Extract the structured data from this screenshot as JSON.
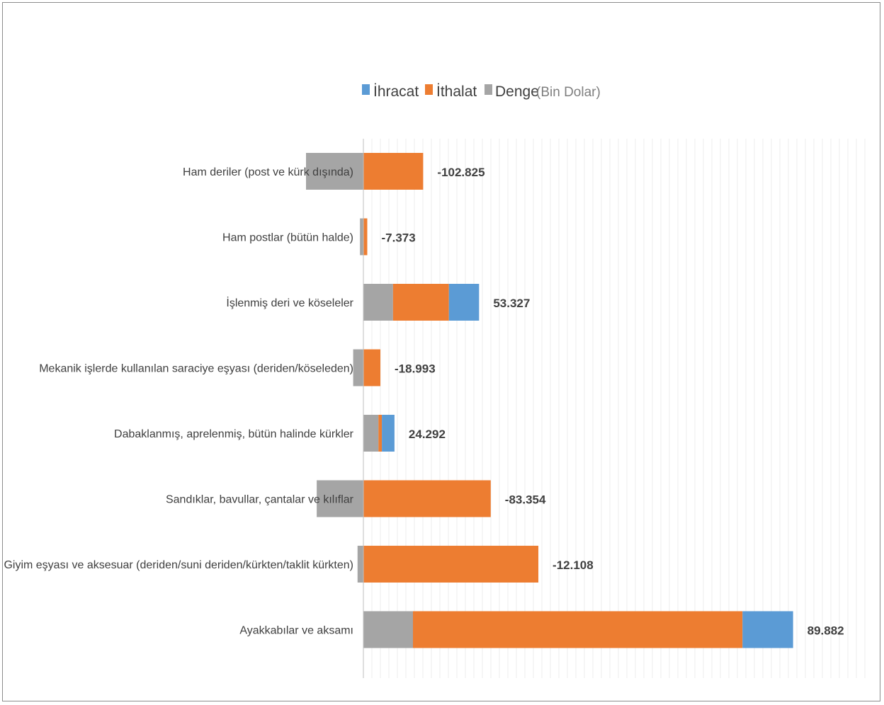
{
  "chart_data": {
    "type": "bar",
    "orientation": "horizontal",
    "stacked": true,
    "title": "",
    "unit_note": "(Bin Dolar)",
    "legend_position": "top",
    "grid": true,
    "colors": {
      "ihracat": "#5b9bd5",
      "ithalat": "#ed7d31",
      "denge": "#a5a5a5"
    },
    "series": [
      {
        "key": "ihracat",
        "name": "İhracat"
      },
      {
        "key": "ithalat",
        "name": "İthalat"
      },
      {
        "key": "denge",
        "name": "Denge"
      }
    ],
    "categories": [
      "Ham deriler (post ve kürk dışında)",
      "Ham postlar (bütün halde)",
      "İşlenmiş deri ve köseleler",
      "Mekanik işlerde kullanılan saraciye eşyası (deriden/köseleden)",
      "Dabaklanmış, aprelenmiş, bütün halinde kürkler",
      "Sandıklar, bavullar, çantalar ve kılıflar",
      "Giyim eşyası ve aksesuar (deriden/suni deriden/kürkten/taklit kürkten)",
      "Ayakkabılar ve aksamı"
    ],
    "bars": [
      {
        "denge": -59000,
        "ithalat": 61500,
        "ihracat": 0
      },
      {
        "denge": -3500,
        "ithalat": 4000,
        "ihracat": 0
      },
      {
        "denge": 30500,
        "ithalat": 57500,
        "ihracat": 31000
      },
      {
        "denge": -10500,
        "ithalat": 17500,
        "ihracat": 0
      },
      {
        "denge": 15500,
        "ithalat": 3500,
        "ihracat": 13000
      },
      {
        "denge": -48000,
        "ithalat": 131000,
        "ihracat": 0
      },
      {
        "denge": -6000,
        "ithalat": 180000,
        "ihracat": 0
      },
      {
        "denge": 51000,
        "ithalat": 339000,
        "ihracat": 52000
      }
    ],
    "data_labels": [
      "-102.825",
      "-7.373",
      "53.327",
      "-18.993",
      "24.292",
      "-83.354",
      "-12.108",
      "89.882"
    ]
  }
}
